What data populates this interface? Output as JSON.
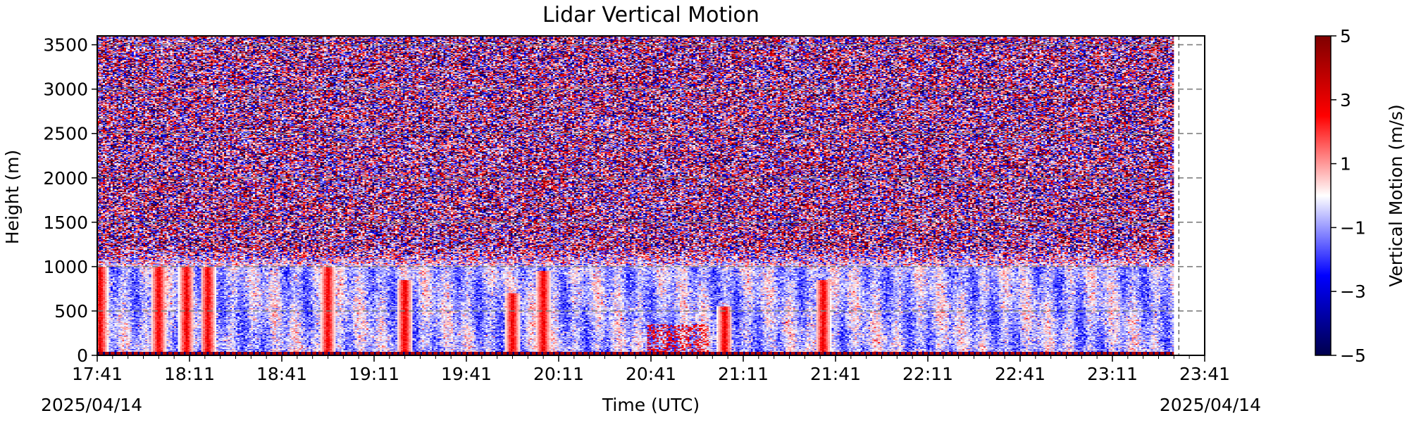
{
  "chart_data": {
    "type": "heatmap",
    "title": "Lidar Vertical Motion",
    "xlabel": "Time (UTC)",
    "ylabel": "Height (m)",
    "x_tick_labels": [
      "17:41",
      "18:11",
      "18:41",
      "19:11",
      "19:41",
      "20:11",
      "20:41",
      "21:11",
      "21:41",
      "22:11",
      "22:41",
      "23:11",
      "23:41"
    ],
    "x_date_labels": [
      "2025/04/14",
      "2025/04/14"
    ],
    "xlim": [
      "17:41",
      "23:41"
    ],
    "y_ticks": [
      0,
      500,
      1000,
      1500,
      2000,
      2500,
      3000,
      3500
    ],
    "ylim": [
      0,
      3600
    ],
    "colorbar": {
      "label": "Vertical Motion (m/s)",
      "ticks": [
        -5,
        -3,
        -1,
        1,
        3,
        5
      ],
      "tick_labels": [
        "−5",
        "−3",
        "−1",
        "1",
        "3",
        "5"
      ],
      "range": [
        -5,
        5
      ],
      "colormap": "seismic",
      "colors": [
        "#00004c",
        "#0000ff",
        "#ffffff",
        "#ff0000",
        "#7f0000"
      ]
    },
    "grid": "horizontal dashed at y ticks",
    "data_end_time": "23:31",
    "notable_updrafts": [
      {
        "time": "17:42",
        "height_top": 1100
      },
      {
        "time": "18:01",
        "height_top": 1200
      },
      {
        "time": "18:10",
        "height_top": 1250
      },
      {
        "time": "18:17",
        "height_top": 1150
      },
      {
        "time": "18:56",
        "height_top": 1250
      },
      {
        "time": "19:21",
        "height_top": 850
      },
      {
        "time": "19:56",
        "height_top": 700
      },
      {
        "time": "20:06",
        "height_top": 950
      },
      {
        "time": "21:05",
        "height_top": 550
      },
      {
        "time": "21:37",
        "height_top": 850
      }
    ]
  }
}
